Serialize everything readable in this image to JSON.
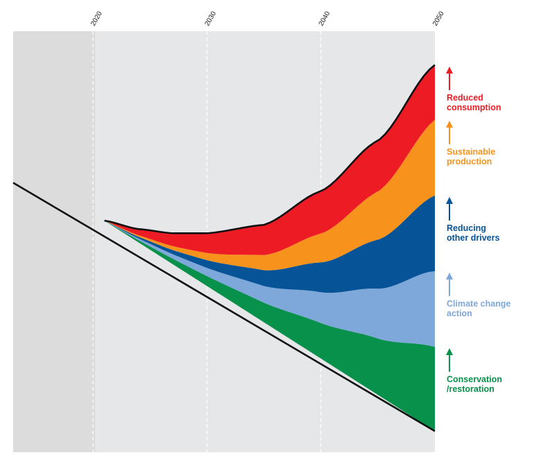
{
  "chart_data": {
    "type": "area",
    "x_axis": {
      "ticks": [
        2020,
        2030,
        2040,
        2050
      ],
      "range": [
        2013,
        2050
      ],
      "tick_position": "top",
      "grid": "dashed-vertical"
    },
    "shaded_region": {
      "from": 2013,
      "to": 2020,
      "color": "#dcdcdd"
    },
    "baseline_trend": {
      "x": [
        2013,
        2021,
        2050
      ],
      "y": [
        0.64,
        0.55,
        0.05
      ]
    },
    "combined_trend": {
      "x": [
        2021,
        2024,
        2027,
        2030,
        2035,
        2040,
        2045,
        2050
      ],
      "y": [
        0.55,
        0.53,
        0.52,
        0.52,
        0.54,
        0.62,
        0.74,
        0.92
      ]
    },
    "series": [
      {
        "name": "Conservation\n/restoration",
        "color": "#07914a",
        "values_at_2050": [
          0.05,
          0.25
        ]
      },
      {
        "name": "Climate change\naction",
        "color": "#7ea7da",
        "values_at_2050": [
          0.25,
          0.43
        ]
      },
      {
        "name": "Reducing\nother drivers",
        "color": "#065497",
        "values_at_2050": [
          0.43,
          0.61
        ]
      },
      {
        "name": "Sustainable\nproduction",
        "color": "#f7931d",
        "values_at_2050": [
          0.61,
          0.79
        ]
      },
      {
        "name": "Reduced\nconsumption",
        "color": "#ed1c24",
        "values_at_2050": [
          0.79,
          0.92
        ]
      }
    ],
    "legend_placement": "right"
  }
}
